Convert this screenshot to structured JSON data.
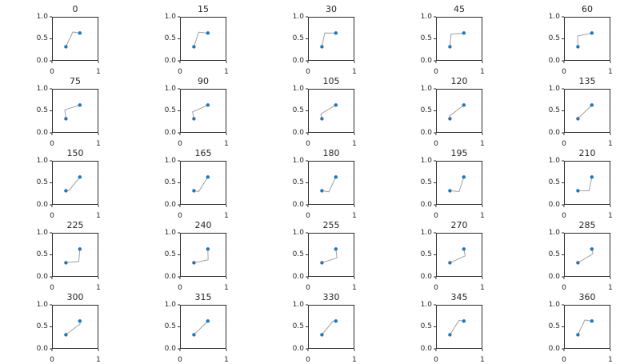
{
  "page": {
    "background": "#ffffff"
  },
  "chart_data": {
    "type": "line",
    "layout": {
      "rows": 5,
      "cols": 5
    },
    "xlim": [
      0,
      1
    ],
    "ylim": [
      0,
      1
    ],
    "xtick_labels": [
      "0",
      "1"
    ],
    "xtick_values": [
      0,
      1
    ],
    "ytick_labels": [
      "1.0",
      "0.5",
      "0.0"
    ],
    "ytick_values": [
      1,
      0.5,
      0
    ],
    "point_color": "#1f77b4",
    "line_color": "#a0a0a0",
    "axis_color": "#2b2b2b",
    "grid_lines": false,
    "legend": false,
    "endpoints": {
      "a": [
        0.3,
        0.32
      ],
      "b": [
        0.6,
        0.63
      ]
    },
    "subplots": [
      {
        "title": "0",
        "elbow": [
          0.45,
          0.655
        ]
      },
      {
        "title": "15",
        "elbow": [
          0.403,
          0.649
        ]
      },
      {
        "title": "30",
        "elbow": [
          0.36,
          0.631
        ]
      },
      {
        "title": "45",
        "elbow": [
          0.323,
          0.602
        ]
      },
      {
        "title": "60",
        "elbow": [
          0.294,
          0.565
        ]
      },
      {
        "title": "75",
        "elbow": [
          0.276,
          0.522
        ]
      },
      {
        "title": "90",
        "elbow": [
          0.27,
          0.475
        ]
      },
      {
        "title": "105",
        "elbow": [
          0.276,
          0.428
        ]
      },
      {
        "title": "120",
        "elbow": [
          0.294,
          0.385
        ]
      },
      {
        "title": "135",
        "elbow": [
          0.323,
          0.348
        ]
      },
      {
        "title": "150",
        "elbow": [
          0.36,
          0.319
        ]
      },
      {
        "title": "165",
        "elbow": [
          0.403,
          0.301
        ]
      },
      {
        "title": "180",
        "elbow": [
          0.45,
          0.295
        ]
      },
      {
        "title": "195",
        "elbow": [
          0.497,
          0.301
        ]
      },
      {
        "title": "210",
        "elbow": [
          0.54,
          0.319
        ]
      },
      {
        "title": "225",
        "elbow": [
          0.577,
          0.348
        ]
      },
      {
        "title": "240",
        "elbow": [
          0.606,
          0.385
        ]
      },
      {
        "title": "255",
        "elbow": [
          0.624,
          0.428
        ]
      },
      {
        "title": "270",
        "elbow": [
          0.63,
          0.475
        ]
      },
      {
        "title": "285",
        "elbow": [
          0.624,
          0.522
        ]
      },
      {
        "title": "300",
        "elbow": [
          0.606,
          0.565
        ]
      },
      {
        "title": "315",
        "elbow": [
          0.577,
          0.602
        ]
      },
      {
        "title": "330",
        "elbow": [
          0.54,
          0.631
        ]
      },
      {
        "title": "345",
        "elbow": [
          0.497,
          0.649
        ]
      },
      {
        "title": "360",
        "elbow": [
          0.45,
          0.655
        ]
      }
    ]
  }
}
